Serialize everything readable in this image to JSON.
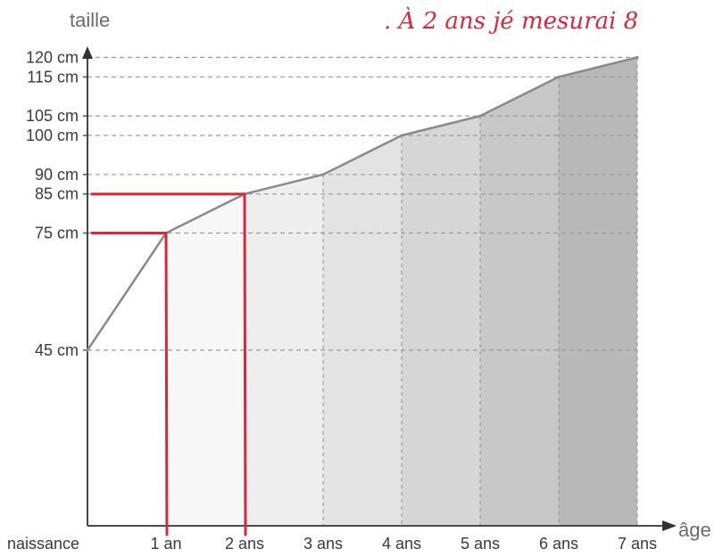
{
  "chart_data": {
    "type": "line",
    "title": "",
    "xlabel": "âge",
    "ylabel": "taille",
    "x_categories": [
      "naissance",
      "1 an",
      "2 ans",
      "3 ans",
      "4 ans",
      "5 ans",
      "6 ans",
      "7 ans"
    ],
    "x": [
      0,
      1,
      2,
      3,
      4,
      5,
      6,
      7
    ],
    "y_ticks": [
      {
        "value": 45,
        "label": "45 cm"
      },
      {
        "value": 75,
        "label": "75 cm"
      },
      {
        "value": 85,
        "label": "85 cm"
      },
      {
        "value": 90,
        "label": "90 cm"
      },
      {
        "value": 100,
        "label": "100 cm"
      },
      {
        "value": 105,
        "label": "105 cm"
      },
      {
        "value": 115,
        "label": "115 cm"
      },
      {
        "value": 120,
        "label": "120 cm"
      }
    ],
    "series": [
      {
        "values": [
          45,
          75,
          85,
          90,
          100,
          105,
          115,
          120
        ],
        "color": "#8a8a8a"
      }
    ],
    "ylim": [
      0,
      122
    ],
    "grid": true,
    "area_fill": true,
    "band_colors": [
      "#ffffff",
      "#f7f7f7",
      "#eeeeee",
      "#e3e3e3",
      "#d6d6d6",
      "#c8c8c8",
      "#b8b8b8"
    ],
    "annotations": {
      "highlight_points": [
        {
          "x": 1,
          "y": 75
        },
        {
          "x": 2,
          "y": 85
        }
      ],
      "highlight_color": "#d8283a",
      "handwritten_note": ". À 2 ans jé mesurai 8"
    }
  }
}
